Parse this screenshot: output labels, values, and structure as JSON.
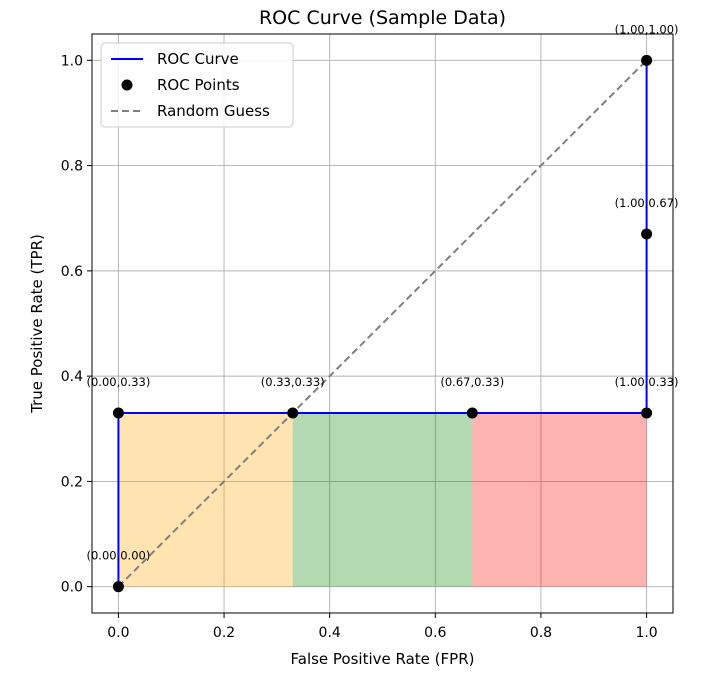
{
  "chart_data": {
    "type": "line",
    "title": "ROC Curve (Sample Data)",
    "xlabel": "False Positive Rate (FPR)",
    "ylabel": "True Positive Rate (TPR)",
    "xlim": [
      -0.05,
      1.05
    ],
    "ylim": [
      -0.05,
      1.05
    ],
    "xticks": [
      0.0,
      0.2,
      0.4,
      0.6,
      0.8,
      1.0
    ],
    "yticks": [
      0.0,
      0.2,
      0.4,
      0.6,
      0.8,
      1.0
    ],
    "xtick_labels": [
      "0.0",
      "0.2",
      "0.4",
      "0.6",
      "0.8",
      "1.0"
    ],
    "ytick_labels": [
      "0.0",
      "0.2",
      "0.4",
      "0.6",
      "0.8",
      "1.0"
    ],
    "grid": true,
    "legend_position": "top-left",
    "series": [
      {
        "name": "ROC Curve",
        "kind": "line",
        "color": "#0000ff",
        "x": [
          0.0,
          0.0,
          0.33,
          0.67,
          1.0,
          1.0,
          1.0
        ],
        "y": [
          0.0,
          0.33,
          0.33,
          0.33,
          0.33,
          0.67,
          1.0
        ]
      },
      {
        "name": "ROC Points",
        "kind": "scatter",
        "color": "#000000",
        "points": [
          {
            "x": 0.0,
            "y": 0.0,
            "label": "(0.00,0.00)"
          },
          {
            "x": 0.0,
            "y": 0.33,
            "label": "(0.00,0.33)"
          },
          {
            "x": 0.33,
            "y": 0.33,
            "label": "(0.33,0.33)"
          },
          {
            "x": 0.67,
            "y": 0.33,
            "label": "(0.67,0.33)"
          },
          {
            "x": 1.0,
            "y": 0.33,
            "label": "(1.00,0.33)"
          },
          {
            "x": 1.0,
            "y": 0.67,
            "label": "(1.00,0.67)"
          },
          {
            "x": 1.0,
            "y": 1.0,
            "label": "(1.00,1.00)"
          }
        ]
      },
      {
        "name": "Random Guess",
        "kind": "dashed-line",
        "color": "#808080",
        "x": [
          0.0,
          1.0
        ],
        "y": [
          0.0,
          1.0
        ]
      }
    ],
    "shaded_regions": [
      {
        "x0": 0.0,
        "x1": 0.33,
        "y0": 0.0,
        "y1": 0.33,
        "color": "#ffa500",
        "opacity": 0.3
      },
      {
        "x0": 0.33,
        "x1": 0.67,
        "y0": 0.0,
        "y1": 0.33,
        "color": "#008000",
        "opacity": 0.3
      },
      {
        "x0": 0.67,
        "x1": 1.0,
        "y0": 0.0,
        "y1": 0.33,
        "color": "#ff0000",
        "opacity": 0.3
      }
    ]
  }
}
